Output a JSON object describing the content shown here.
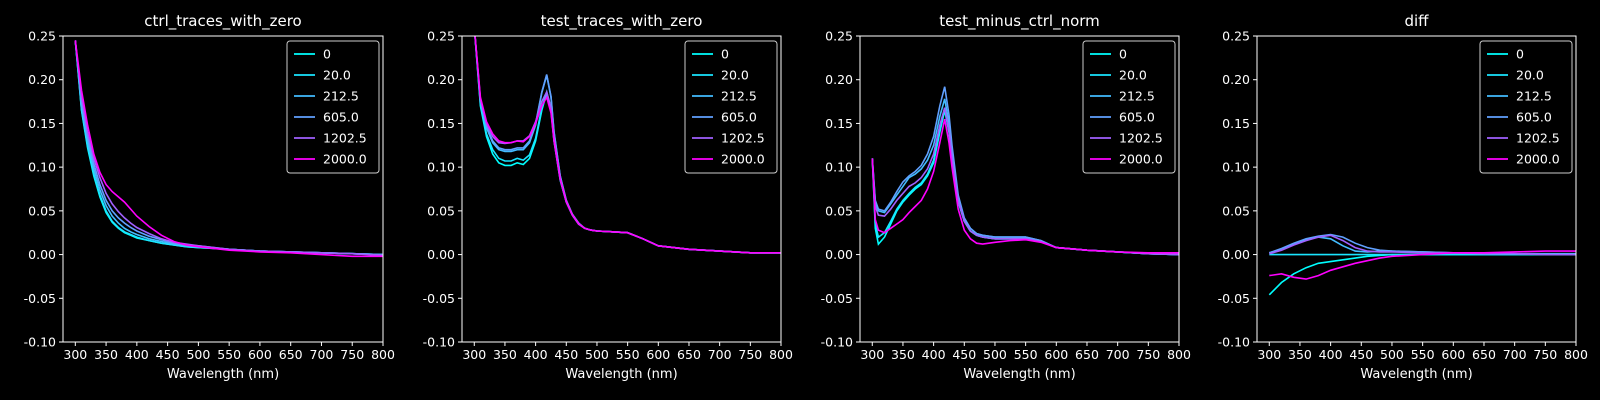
{
  "chart_data": [
    {
      "type": "line",
      "title": "ctrl_traces_with_zero",
      "xlabel": "Wavelength (nm)",
      "ylabel": "",
      "xlim": [
        280,
        800
      ],
      "ylim": [
        -0.1,
        0.25
      ],
      "xticks": [
        300,
        350,
        400,
        450,
        500,
        550,
        600,
        650,
        700,
        750,
        800
      ],
      "yticks": [
        -0.1,
        -0.05,
        0.0,
        0.05,
        0.1,
        0.15,
        0.2,
        0.25
      ],
      "legend": "top-right",
      "grid": false,
      "x": [
        300,
        310,
        320,
        330,
        340,
        350,
        360,
        370,
        380,
        390,
        400,
        420,
        440,
        460,
        480,
        500,
        550,
        600,
        650,
        700,
        750,
        800
      ],
      "series": [
        {
          "name": "0",
          "color": "#00ffff",
          "values": [
            0.245,
            0.165,
            0.122,
            0.09,
            0.066,
            0.048,
            0.037,
            0.03,
            0.025,
            0.022,
            0.019,
            0.016,
            0.013,
            0.011,
            0.009,
            0.008,
            0.006,
            0.004,
            0.003,
            0.002,
            0.001,
            0.0
          ]
        },
        {
          "name": "20.0",
          "color": "#1ae5ff",
          "values": [
            0.245,
            0.166,
            0.124,
            0.092,
            0.068,
            0.05,
            0.038,
            0.031,
            0.026,
            0.023,
            0.02,
            0.016,
            0.013,
            0.011,
            0.009,
            0.008,
            0.006,
            0.004,
            0.003,
            0.002,
            0.001,
            0.0
          ]
        },
        {
          "name": "212.5",
          "color": "#43bcff",
          "values": [
            0.245,
            0.17,
            0.13,
            0.098,
            0.074,
            0.056,
            0.044,
            0.036,
            0.03,
            0.026,
            0.023,
            0.018,
            0.015,
            0.012,
            0.01,
            0.009,
            0.006,
            0.004,
            0.003,
            0.002,
            0.001,
            0.0
          ]
        },
        {
          "name": "605.0",
          "color": "#60a0ff",
          "values": [
            0.245,
            0.175,
            0.135,
            0.104,
            0.08,
            0.062,
            0.05,
            0.042,
            0.036,
            0.031,
            0.027,
            0.021,
            0.017,
            0.013,
            0.011,
            0.01,
            0.006,
            0.004,
            0.003,
            0.002,
            0.001,
            0.0
          ]
        },
        {
          "name": "1202.5",
          "color": "#a060ff",
          "values": [
            0.245,
            0.18,
            0.14,
            0.11,
            0.088,
            0.07,
            0.058,
            0.049,
            0.042,
            0.036,
            0.031,
            0.024,
            0.018,
            0.014,
            0.012,
            0.01,
            0.006,
            0.004,
            0.003,
            0.002,
            0.001,
            -0.001
          ]
        },
        {
          "name": "2000.0",
          "color": "#ff00ff",
          "values": [
            0.245,
            0.188,
            0.148,
            0.115,
            0.094,
            0.08,
            0.072,
            0.066,
            0.06,
            0.052,
            0.044,
            0.032,
            0.022,
            0.015,
            0.011,
            0.009,
            0.005,
            0.003,
            0.002,
            0.0,
            -0.002,
            -0.002
          ]
        }
      ]
    },
    {
      "type": "line",
      "title": "test_traces_with_zero",
      "xlabel": "Wavelength (nm)",
      "ylabel": "",
      "xlim": [
        280,
        800
      ],
      "ylim": [
        -0.1,
        0.25
      ],
      "xticks": [
        300,
        350,
        400,
        450,
        500,
        550,
        600,
        650,
        700,
        750,
        800
      ],
      "yticks": [
        -0.1,
        -0.05,
        0.0,
        0.05,
        0.1,
        0.15,
        0.2,
        0.25
      ],
      "legend": "top-right",
      "grid": false,
      "x": [
        300,
        310,
        320,
        330,
        340,
        350,
        360,
        370,
        380,
        390,
        400,
        410,
        418,
        425,
        430,
        440,
        450,
        460,
        470,
        480,
        490,
        500,
        525,
        550,
        575,
        600,
        650,
        700,
        750,
        800
      ],
      "series": [
        {
          "name": "0",
          "color": "#00ffff",
          "values": [
            0.26,
            0.17,
            0.135,
            0.115,
            0.105,
            0.102,
            0.102,
            0.105,
            0.103,
            0.11,
            0.13,
            0.165,
            0.185,
            0.165,
            0.13,
            0.085,
            0.06,
            0.045,
            0.035,
            0.03,
            0.028,
            0.027,
            0.026,
            0.025,
            0.018,
            0.01,
            0.006,
            0.004,
            0.002,
            0.002
          ]
        },
        {
          "name": "20.0",
          "color": "#1ae5ff",
          "values": [
            0.26,
            0.172,
            0.138,
            0.12,
            0.11,
            0.107,
            0.107,
            0.11,
            0.108,
            0.114,
            0.133,
            0.168,
            0.186,
            0.166,
            0.131,
            0.086,
            0.06,
            0.045,
            0.035,
            0.03,
            0.028,
            0.027,
            0.026,
            0.025,
            0.018,
            0.01,
            0.006,
            0.004,
            0.002,
            0.002
          ]
        },
        {
          "name": "212.5",
          "color": "#43bcff",
          "values": [
            0.26,
            0.175,
            0.145,
            0.128,
            0.12,
            0.118,
            0.118,
            0.12,
            0.12,
            0.128,
            0.148,
            0.185,
            0.205,
            0.18,
            0.14,
            0.09,
            0.062,
            0.046,
            0.036,
            0.03,
            0.028,
            0.027,
            0.026,
            0.025,
            0.018,
            0.01,
            0.006,
            0.004,
            0.002,
            0.002
          ]
        },
        {
          "name": "605.0",
          "color": "#60a0ff",
          "values": [
            0.26,
            0.176,
            0.147,
            0.13,
            0.122,
            0.12,
            0.12,
            0.122,
            0.122,
            0.13,
            0.15,
            0.186,
            0.206,
            0.181,
            0.141,
            0.09,
            0.062,
            0.046,
            0.036,
            0.03,
            0.028,
            0.027,
            0.026,
            0.025,
            0.018,
            0.01,
            0.006,
            0.004,
            0.002,
            0.002
          ]
        },
        {
          "name": "1202.5",
          "color": "#a060ff",
          "values": [
            0.26,
            0.178,
            0.15,
            0.135,
            0.128,
            0.127,
            0.128,
            0.13,
            0.13,
            0.136,
            0.152,
            0.175,
            0.186,
            0.168,
            0.135,
            0.088,
            0.062,
            0.046,
            0.036,
            0.03,
            0.028,
            0.027,
            0.026,
            0.025,
            0.018,
            0.01,
            0.006,
            0.004,
            0.002,
            0.002
          ]
        },
        {
          "name": "2000.0",
          "color": "#ff00ff",
          "values": [
            0.26,
            0.18,
            0.152,
            0.138,
            0.13,
            0.128,
            0.128,
            0.13,
            0.129,
            0.135,
            0.15,
            0.17,
            0.18,
            0.162,
            0.13,
            0.086,
            0.06,
            0.045,
            0.035,
            0.03,
            0.028,
            0.027,
            0.026,
            0.025,
            0.018,
            0.01,
            0.006,
            0.004,
            0.002,
            0.002
          ]
        }
      ]
    },
    {
      "type": "line",
      "title": "test_minus_ctrl_norm",
      "xlabel": "Wavelength (nm)",
      "ylabel": "",
      "xlim": [
        280,
        800
      ],
      "ylim": [
        -0.1,
        0.25
      ],
      "xticks": [
        300,
        350,
        400,
        450,
        500,
        550,
        600,
        650,
        700,
        750,
        800
      ],
      "yticks": [
        -0.1,
        -0.05,
        0.0,
        0.05,
        0.1,
        0.15,
        0.2,
        0.25
      ],
      "legend": "top-right",
      "grid": false,
      "x": [
        300,
        305,
        310,
        320,
        330,
        340,
        350,
        360,
        370,
        380,
        390,
        400,
        410,
        418,
        425,
        430,
        440,
        450,
        460,
        470,
        480,
        490,
        500,
        525,
        550,
        575,
        600,
        650,
        700,
        750,
        800
      ],
      "series": [
        {
          "name": "0",
          "color": "#00ffff",
          "values": [
            0.11,
            0.03,
            0.012,
            0.02,
            0.035,
            0.05,
            0.06,
            0.068,
            0.075,
            0.08,
            0.09,
            0.105,
            0.14,
            0.165,
            0.14,
            0.11,
            0.06,
            0.038,
            0.027,
            0.022,
            0.02,
            0.019,
            0.018,
            0.018,
            0.018,
            0.015,
            0.008,
            0.005,
            0.003,
            0.001,
            0.0
          ]
        },
        {
          "name": "20.0",
          "color": "#1ae5ff",
          "values": [
            0.11,
            0.035,
            0.02,
            0.025,
            0.038,
            0.052,
            0.062,
            0.07,
            0.077,
            0.082,
            0.092,
            0.108,
            0.143,
            0.168,
            0.142,
            0.112,
            0.062,
            0.038,
            0.027,
            0.022,
            0.02,
            0.019,
            0.018,
            0.018,
            0.018,
            0.015,
            0.008,
            0.005,
            0.003,
            0.001,
            0.0
          ]
        },
        {
          "name": "212.5",
          "color": "#43bcff",
          "values": [
            0.11,
            0.06,
            0.05,
            0.048,
            0.058,
            0.068,
            0.078,
            0.088,
            0.092,
            0.098,
            0.108,
            0.125,
            0.158,
            0.178,
            0.15,
            0.118,
            0.065,
            0.04,
            0.03,
            0.024,
            0.022,
            0.021,
            0.02,
            0.02,
            0.02,
            0.016,
            0.008,
            0.005,
            0.003,
            0.001,
            0.0
          ]
        },
        {
          "name": "605.0",
          "color": "#60a0ff",
          "values": [
            0.11,
            0.062,
            0.052,
            0.05,
            0.06,
            0.072,
            0.083,
            0.09,
            0.095,
            0.102,
            0.115,
            0.135,
            0.17,
            0.192,
            0.16,
            0.125,
            0.068,
            0.042,
            0.03,
            0.024,
            0.022,
            0.021,
            0.02,
            0.02,
            0.02,
            0.016,
            0.008,
            0.005,
            0.003,
            0.001,
            0.0
          ]
        },
        {
          "name": "1202.5",
          "color": "#a060ff",
          "values": [
            0.11,
            0.055,
            0.045,
            0.044,
            0.052,
            0.062,
            0.07,
            0.078,
            0.082,
            0.088,
            0.098,
            0.115,
            0.148,
            0.168,
            0.142,
            0.112,
            0.062,
            0.038,
            0.027,
            0.022,
            0.02,
            0.019,
            0.018,
            0.018,
            0.018,
            0.015,
            0.008,
            0.005,
            0.003,
            0.001,
            0.0
          ]
        },
        {
          "name": "2000.0",
          "color": "#ff00ff",
          "values": [
            0.11,
            0.04,
            0.028,
            0.025,
            0.03,
            0.035,
            0.04,
            0.048,
            0.055,
            0.062,
            0.075,
            0.095,
            0.128,
            0.155,
            0.128,
            0.1,
            0.052,
            0.028,
            0.018,
            0.013,
            0.012,
            0.013,
            0.014,
            0.016,
            0.017,
            0.014,
            0.008,
            0.005,
            0.003,
            0.002,
            0.002
          ]
        }
      ]
    },
    {
      "type": "line",
      "title": "diff",
      "xlabel": "Wavelength (nm)",
      "ylabel": "",
      "xlim": [
        280,
        800
      ],
      "ylim": [
        -0.1,
        0.25
      ],
      "xticks": [
        300,
        350,
        400,
        450,
        500,
        550,
        600,
        650,
        700,
        750,
        800
      ],
      "yticks": [
        -0.1,
        -0.05,
        0.0,
        0.05,
        0.1,
        0.15,
        0.2,
        0.25
      ],
      "legend": "top-right",
      "grid": false,
      "x": [
        300,
        320,
        340,
        360,
        380,
        400,
        420,
        440,
        460,
        480,
        500,
        550,
        600,
        650,
        700,
        750,
        800
      ],
      "series": [
        {
          "name": "0",
          "color": "#00ffff",
          "values": [
            -0.046,
            -0.032,
            -0.022,
            -0.015,
            -0.01,
            -0.008,
            -0.006,
            -0.004,
            -0.002,
            -0.001,
            0.0,
            0.0,
            0.0,
            0.0,
            0.0,
            0.0,
            0.0
          ]
        },
        {
          "name": "20.0",
          "color": "#1ae5ff",
          "values": [
            0.0,
            0.0,
            0.0,
            0.0,
            0.0,
            0.0,
            0.0,
            0.0,
            0.0,
            0.0,
            0.0,
            0.0,
            0.0,
            0.0,
            0.0,
            0.0,
            0.0
          ]
        },
        {
          "name": "212.5",
          "color": "#43bcff",
          "values": [
            0.002,
            0.006,
            0.012,
            0.017,
            0.02,
            0.018,
            0.01,
            0.004,
            0.003,
            0.004,
            0.004,
            0.003,
            0.002,
            0.002,
            0.001,
            0.001,
            0.001
          ]
        },
        {
          "name": "605.0",
          "color": "#60a0ff",
          "values": [
            0.002,
            0.007,
            0.013,
            0.018,
            0.021,
            0.023,
            0.02,
            0.013,
            0.008,
            0.005,
            0.004,
            0.003,
            0.002,
            0.002,
            0.001,
            0.0,
            0.0
          ]
        },
        {
          "name": "1202.5",
          "color": "#a060ff",
          "values": [
            0.001,
            0.005,
            0.011,
            0.016,
            0.02,
            0.022,
            0.016,
            0.008,
            0.004,
            0.003,
            0.003,
            0.002,
            0.002,
            0.001,
            0.001,
            0.0,
            0.0
          ]
        },
        {
          "name": "2000.0",
          "color": "#ff00ff",
          "values": [
            -0.024,
            -0.022,
            -0.026,
            -0.028,
            -0.024,
            -0.018,
            -0.014,
            -0.01,
            -0.007,
            -0.004,
            -0.002,
            0.0,
            0.002,
            0.002,
            0.003,
            0.004,
            0.004
          ]
        }
      ]
    }
  ]
}
